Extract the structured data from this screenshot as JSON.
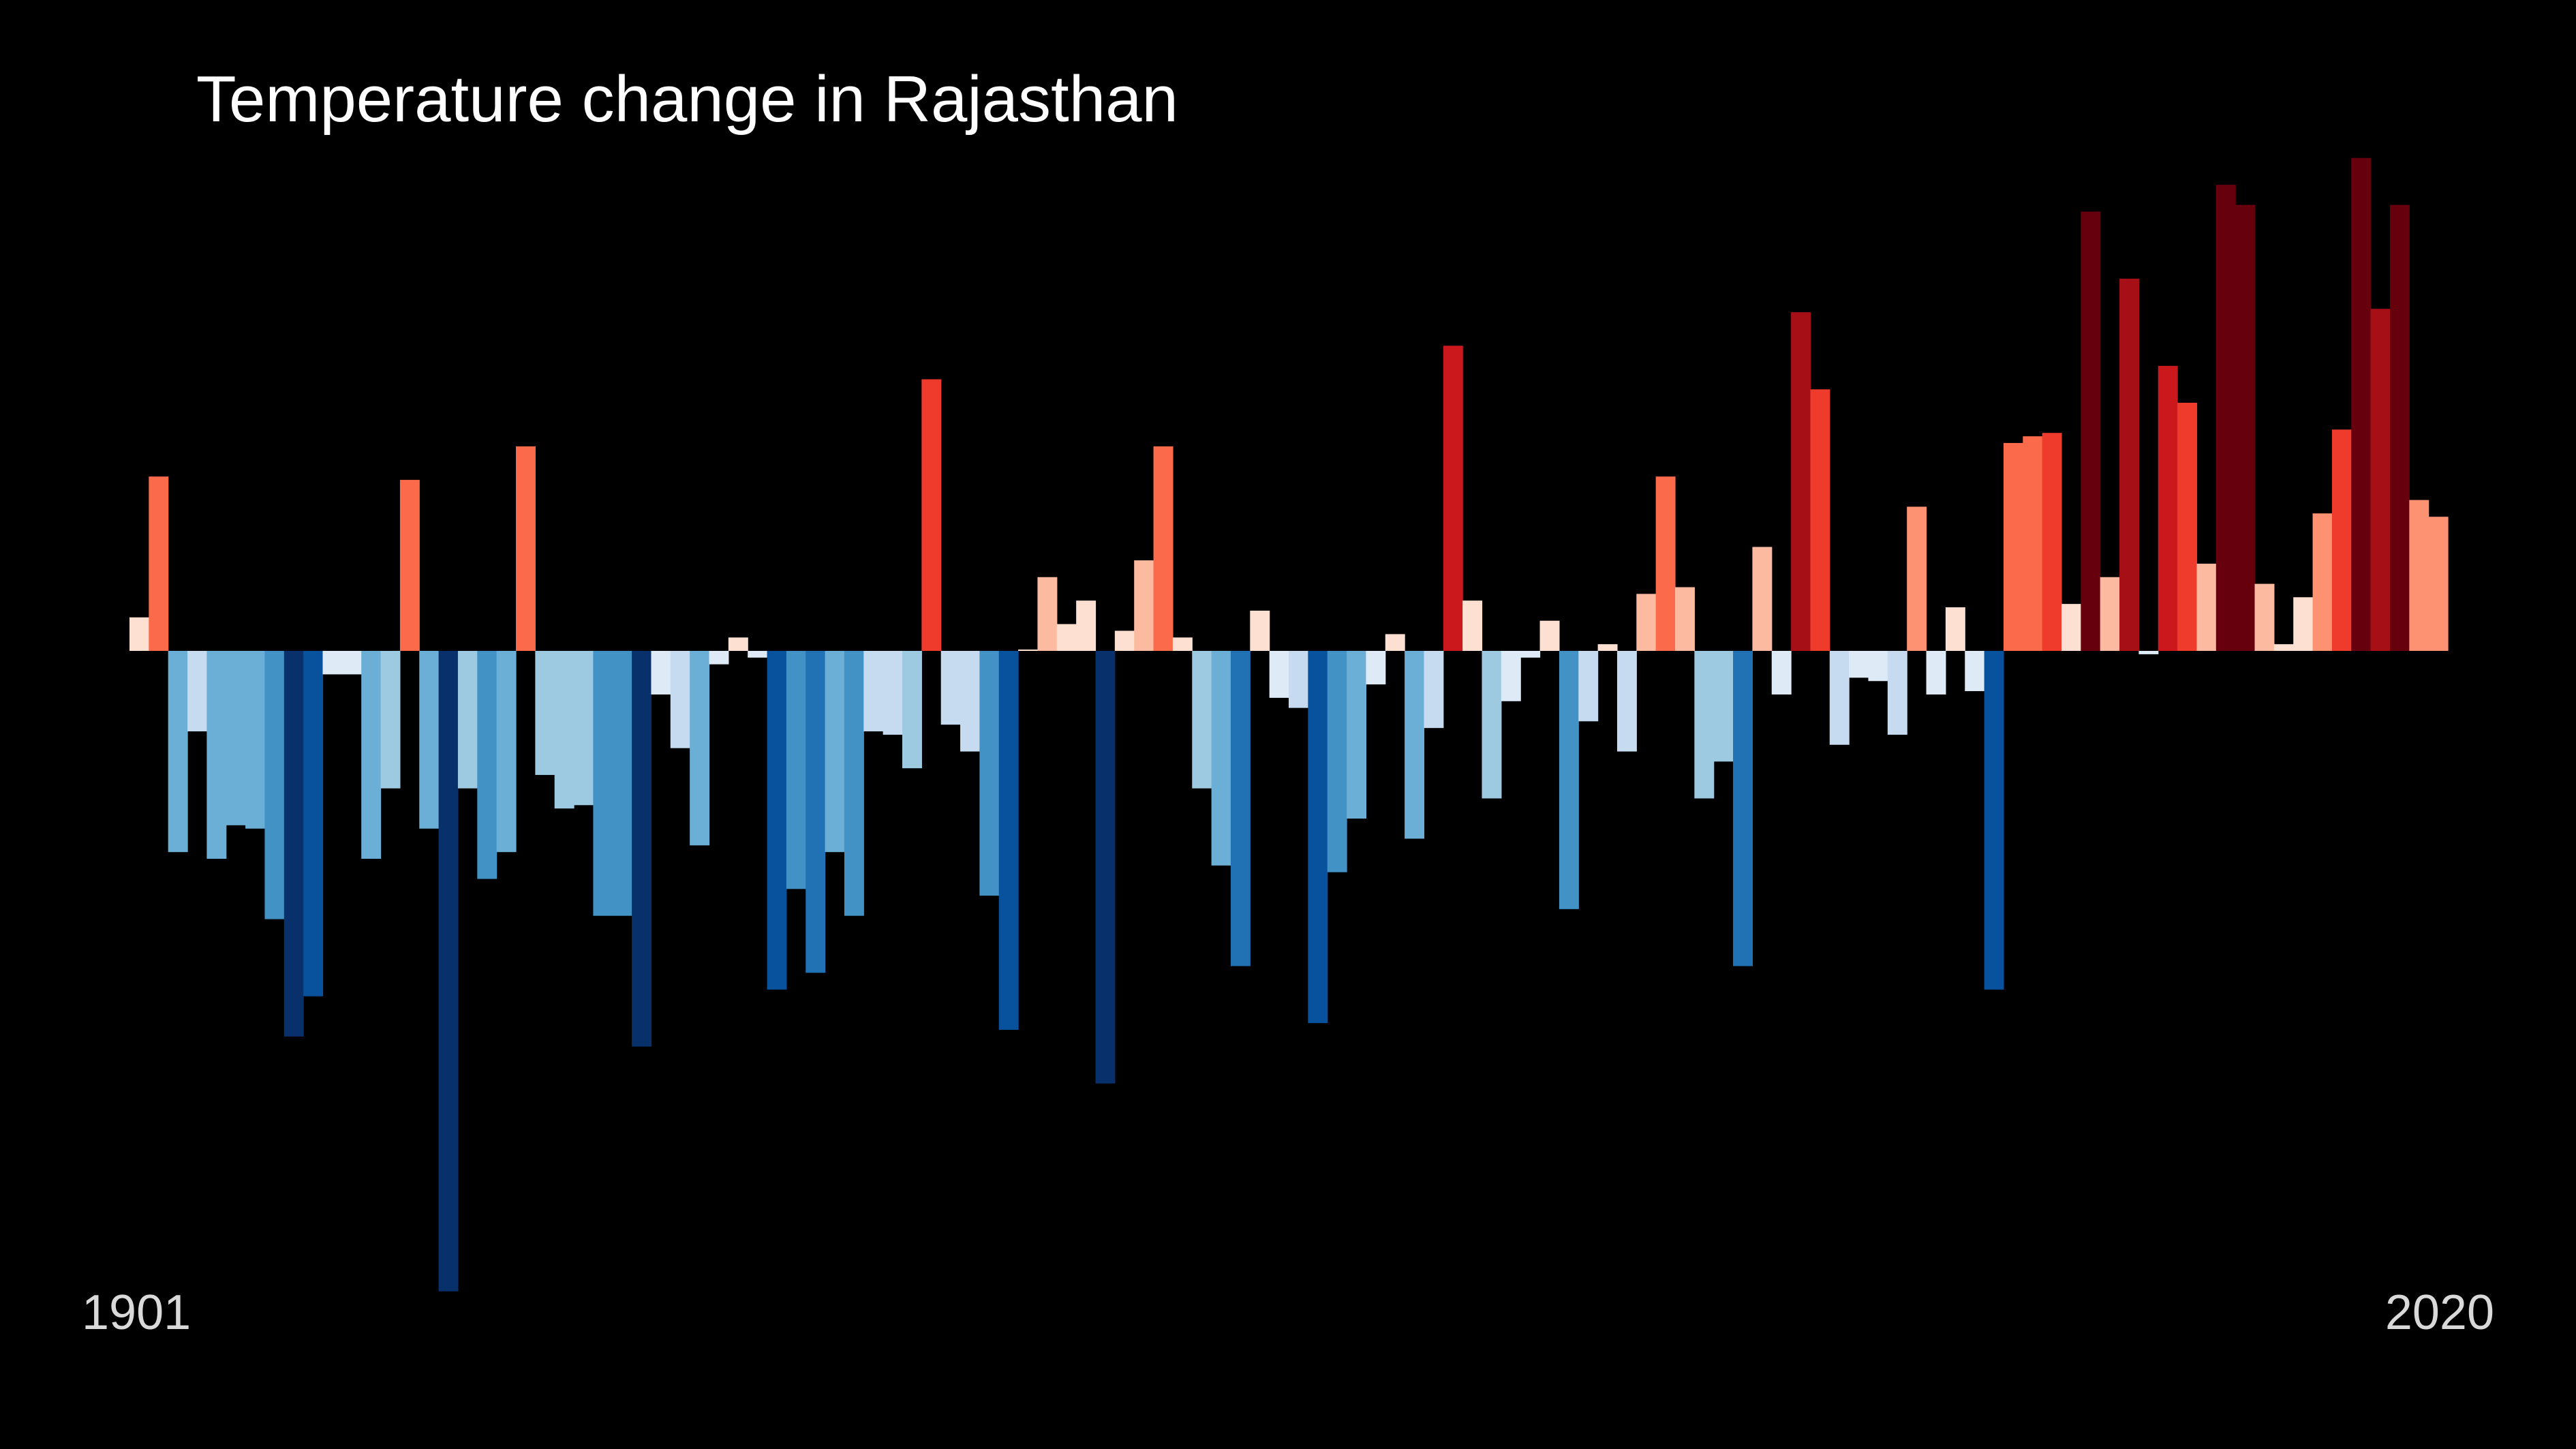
{
  "title": "Temperature change in Rajasthan",
  "start_year_label": "1901",
  "end_year_label": "2020",
  "colors": {
    "background": "#000000",
    "scale": [
      "#08306b",
      "#08519c",
      "#2171b5",
      "#4292c6",
      "#6baed6",
      "#9ecae1",
      "#c6dbef",
      "#deebf7",
      "#fee0d2",
      "#fcbba1",
      "#fc9272",
      "#fb6a4a",
      "#ef3b2c",
      "#cb181d",
      "#a50f15",
      "#67000d"
    ]
  },
  "chart_data": {
    "type": "bar",
    "title": "Temperature change in Rajasthan",
    "xlabel": "",
    "ylabel": "",
    "x_start": 1901,
    "x_end": 2020,
    "ylim": [
      -1.9,
      1.5
    ],
    "grid": false,
    "legend": "none",
    "values": [
      0.1,
      0.52,
      -0.6,
      -0.24,
      -0.62,
      -0.52,
      -0.53,
      -0.8,
      -1.15,
      -1.03,
      -0.07,
      -0.07,
      -0.62,
      -0.41,
      0.51,
      -0.53,
      -1.91,
      -0.41,
      -0.68,
      -0.6,
      0.61,
      -0.37,
      -0.47,
      -0.46,
      -0.79,
      -0.79,
      -1.18,
      -0.13,
      -0.29,
      -0.58,
      -0.04,
      0.04,
      -0.02,
      -1.01,
      -0.71,
      -0.96,
      -0.6,
      -0.79,
      -0.24,
      -0.25,
      -0.35,
      0.81,
      -0.22,
      -0.3,
      -0.73,
      -1.13,
      0.0,
      0.22,
      0.08,
      0.15,
      -1.29,
      0.06,
      0.27,
      0.61,
      0.04,
      -0.41,
      -0.64,
      -0.94,
      0.12,
      -0.14,
      -0.17,
      -1.11,
      -0.66,
      -0.5,
      -0.1,
      0.05,
      -0.56,
      -0.23,
      0.91,
      0.15,
      -0.44,
      -0.15,
      -0.02,
      0.09,
      -0.77,
      -0.21,
      0.02,
      -0.3,
      0.17,
      0.52,
      0.19,
      -0.44,
      -0.33,
      -0.94,
      0.31,
      -0.13,
      1.01,
      0.78,
      -0.28,
      -0.08,
      -0.09,
      -0.25,
      0.43,
      -0.13,
      0.13,
      -0.12,
      -1.01,
      0.62,
      0.64,
      0.65,
      0.14,
      1.31,
      0.22,
      1.11,
      -0.01,
      0.85,
      0.74,
      0.26,
      1.39,
      1.33,
      0.2,
      0.02,
      0.16,
      0.41,
      0.66,
      1.47,
      1.02,
      1.33,
      0.45,
      0.4
    ]
  }
}
